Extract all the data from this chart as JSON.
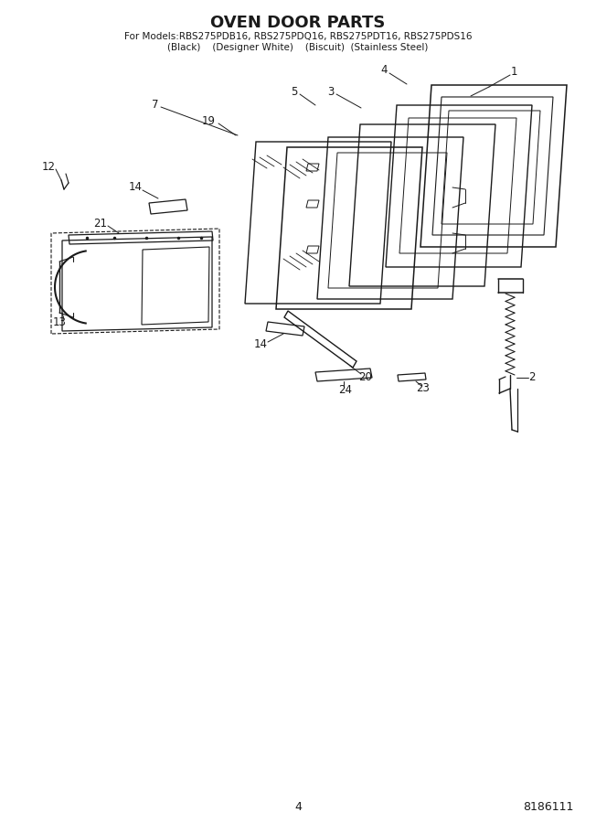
{
  "title": "OVEN DOOR PARTS",
  "subtitle1": "For Models:RBS275PDB16, RBS275PDQ16, RBS275PDT16, RBS275PDS16",
  "subtitle2": "(Black)    (Designer White)    (Biscuit)  (Stainless Steel)",
  "page_number": "4",
  "part_number": "8186111",
  "bg_color": "#ffffff",
  "line_color": "#1a1a1a",
  "label_fontsize": 8.5,
  "title_fontsize": 13
}
